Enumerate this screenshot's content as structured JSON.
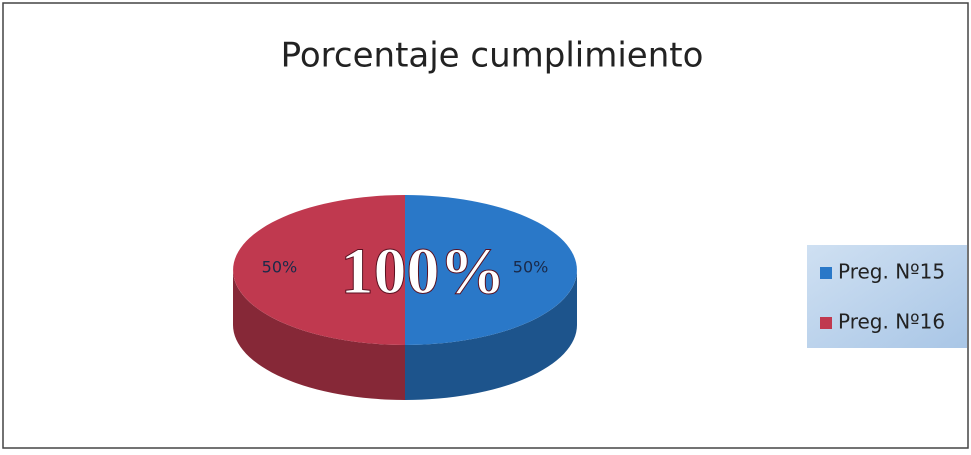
{
  "chart_data": {
    "type": "pie",
    "title": "Porcentaje cumplimiento",
    "categories": [
      "Preg. Nº15",
      "Preg. Nº16"
    ],
    "values": [
      50,
      50
    ],
    "value_labels": [
      "50%",
      "50%"
    ],
    "colors": [
      "#2a78c8",
      "#c0394f"
    ],
    "annotation": "100%",
    "legend": "right"
  }
}
